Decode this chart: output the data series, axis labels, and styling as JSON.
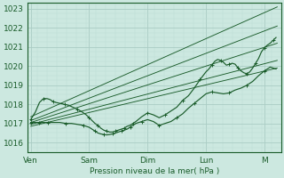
{
  "title": "",
  "xlabel": "Pression niveau de la mer( hPa )",
  "bg_color": "#cce8e0",
  "grid_major_color": "#aaccc4",
  "grid_minor_color": "#bbddd6",
  "line_color": "#1a5c2a",
  "xtick_labels": [
    "Ven",
    "Sam",
    "Dim",
    "Lun",
    "M"
  ],
  "xtick_positions": [
    0,
    1,
    2,
    3,
    4
  ],
  "ylim": [
    1015.7,
    1023.3
  ],
  "xlim": [
    -0.05,
    4.25
  ],
  "ytick_positions": [
    1016,
    1017,
    1018,
    1019,
    1020,
    1021,
    1022,
    1023
  ],
  "straight_lines": [
    {
      "x0": 0.0,
      "y0": 1017.35,
      "x1": 4.22,
      "y1": 1023.1
    },
    {
      "x0": 0.0,
      "y0": 1017.15,
      "x1": 4.22,
      "y1": 1022.1
    },
    {
      "x0": 0.0,
      "y0": 1017.05,
      "x1": 4.22,
      "y1": 1021.2
    },
    {
      "x0": 0.0,
      "y0": 1016.95,
      "x1": 4.22,
      "y1": 1020.3
    },
    {
      "x0": 0.0,
      "y0": 1016.85,
      "x1": 4.22,
      "y1": 1019.9
    }
  ],
  "wavy_line1": {
    "x": [
      0.0,
      0.08,
      0.15,
      0.22,
      0.28,
      0.33,
      0.38,
      0.43,
      0.5,
      0.58,
      0.65,
      0.72,
      0.8,
      0.88,
      0.95,
      1.0,
      1.05,
      1.1,
      1.15,
      1.2,
      1.25,
      1.3,
      1.35,
      1.4,
      1.45,
      1.5,
      1.55,
      1.6,
      1.65,
      1.7,
      1.75,
      1.8,
      1.9,
      2.0,
      2.1,
      2.2,
      2.3,
      2.4,
      2.5,
      2.6,
      2.7,
      2.8,
      2.9,
      3.0,
      3.05,
      3.1,
      3.15,
      3.2,
      3.25,
      3.3,
      3.35,
      3.4,
      3.45,
      3.5,
      3.55,
      3.6,
      3.65,
      3.7,
      3.75,
      3.8,
      3.85,
      3.9,
      3.95,
      4.0,
      4.05,
      4.1,
      4.15,
      4.2
    ],
    "y": [
      1017.2,
      1017.6,
      1018.1,
      1018.3,
      1018.3,
      1018.25,
      1018.15,
      1018.1,
      1018.05,
      1018.0,
      1017.95,
      1017.85,
      1017.75,
      1017.6,
      1017.45,
      1017.3,
      1017.15,
      1017.0,
      1016.9,
      1016.75,
      1016.65,
      1016.6,
      1016.55,
      1016.55,
      1016.6,
      1016.65,
      1016.7,
      1016.75,
      1016.85,
      1016.9,
      1017.0,
      1017.1,
      1017.35,
      1017.55,
      1017.45,
      1017.3,
      1017.45,
      1017.65,
      1017.85,
      1018.2,
      1018.45,
      1018.85,
      1019.3,
      1019.7,
      1019.85,
      1020.05,
      1020.25,
      1020.35,
      1020.3,
      1020.2,
      1020.05,
      1020.1,
      1020.15,
      1020.1,
      1019.9,
      1019.75,
      1019.65,
      1019.6,
      1019.7,
      1019.9,
      1020.15,
      1020.4,
      1020.75,
      1020.95,
      1021.1,
      1021.2,
      1021.35,
      1021.5
    ]
  },
  "wavy_line2": {
    "x": [
      0.0,
      0.05,
      0.1,
      0.15,
      0.2,
      0.25,
      0.3,
      0.4,
      0.5,
      0.6,
      0.7,
      0.8,
      0.9,
      1.0,
      1.05,
      1.1,
      1.15,
      1.2,
      1.25,
      1.3,
      1.35,
      1.4,
      1.45,
      1.5,
      1.55,
      1.6,
      1.65,
      1.7,
      1.75,
      1.8,
      1.9,
      2.0,
      2.1,
      2.2,
      2.3,
      2.4,
      2.5,
      2.6,
      2.7,
      2.8,
      2.9,
      3.0,
      3.1,
      3.2,
      3.3,
      3.4,
      3.5,
      3.6,
      3.7,
      3.8,
      3.9,
      4.0,
      4.1,
      4.2
    ],
    "y": [
      1017.05,
      1017.05,
      1017.05,
      1017.05,
      1017.05,
      1017.05,
      1017.05,
      1017.05,
      1017.05,
      1017.0,
      1017.0,
      1016.95,
      1016.9,
      1016.8,
      1016.7,
      1016.6,
      1016.5,
      1016.45,
      1016.42,
      1016.4,
      1016.42,
      1016.45,
      1016.5,
      1016.55,
      1016.6,
      1016.65,
      1016.7,
      1016.8,
      1016.9,
      1017.0,
      1017.1,
      1017.2,
      1017.1,
      1016.9,
      1017.0,
      1017.1,
      1017.3,
      1017.5,
      1017.8,
      1018.05,
      1018.3,
      1018.55,
      1018.65,
      1018.6,
      1018.55,
      1018.6,
      1018.75,
      1018.85,
      1019.0,
      1019.2,
      1019.5,
      1019.75,
      1019.95,
      1019.85
    ]
  }
}
